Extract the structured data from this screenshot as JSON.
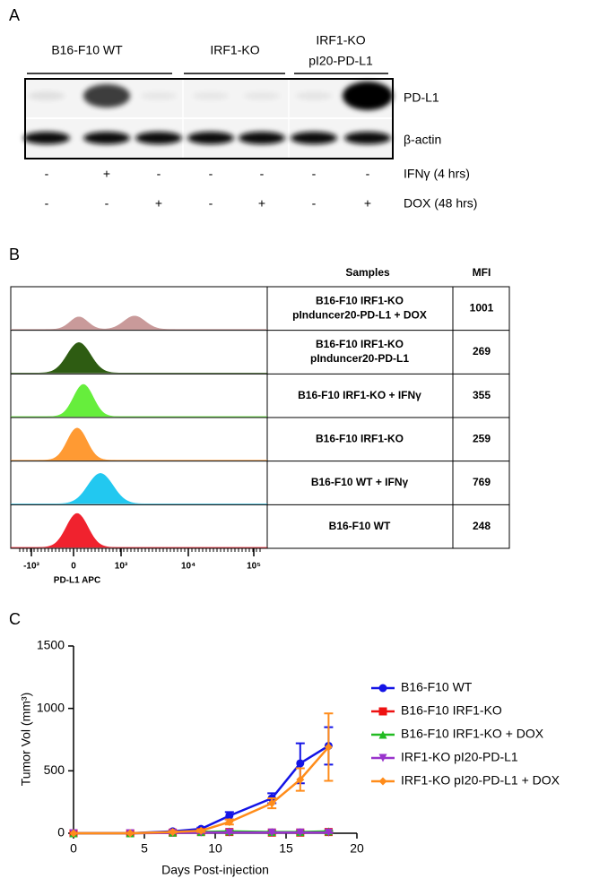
{
  "blot": {
    "panel_label": "A",
    "groups": [
      [
        "B16-F10 WT"
      ],
      [
        "IRF1-KO"
      ],
      [
        "IRF1-KO",
        "pI20-PD-L1"
      ]
    ],
    "bands": [
      "PD-L1",
      "β-actin"
    ],
    "treatments": [
      {
        "name": "IFNγ (4 hrs)",
        "signs": [
          "-",
          "+",
          "-",
          "-",
          "-",
          "-",
          "-"
        ]
      },
      {
        "name": "DOX (48 hrs)",
        "signs": [
          "-",
          "-",
          "+",
          "-",
          "+",
          "-",
          "+"
        ]
      }
    ]
  },
  "flow": {
    "panel_label": "B",
    "columns": [
      "Samples",
      "MFI"
    ],
    "rows": [
      {
        "sample": [
          "B16-F10 IRF1-KO",
          "pInduncer20-PD-L1 + DOX"
        ],
        "mfi": 1001,
        "color": "#c99a9a"
      },
      {
        "sample": [
          "B16-F10 IRF1-KO",
          "pInduncer20-PD-L1"
        ],
        "mfi": 269,
        "color": "#2e5c12"
      },
      {
        "sample": [
          "B16-F10 IRF1-KO + IFNγ"
        ],
        "mfi": 355,
        "color": "#66ee3c"
      },
      {
        "sample": [
          "B16-F10 IRF1-KO"
        ],
        "mfi": 259,
        "color": "#ff9a33"
      },
      {
        "sample": [
          "B16-F10 WT + IFNγ"
        ],
        "mfi": 769,
        "color": "#22c8f0"
      },
      {
        "sample": [
          "B16-F10 WT"
        ],
        "mfi": 248,
        "color": "#f0222e"
      }
    ],
    "axis_label": "PD-L1 APC",
    "ticks": [
      "-10³",
      "0",
      "10³",
      "10⁴",
      "10⁵"
    ]
  },
  "chart_data": {
    "type": "line",
    "panel_label": "C",
    "x_label": "Days Post-injection",
    "y_label": "Tumor Vol (mm³)",
    "x": [
      0,
      4,
      7,
      9,
      11,
      14,
      16,
      18
    ],
    "xlim": [
      0,
      20
    ],
    "xticks": [
      0,
      5,
      10,
      15,
      20
    ],
    "ylim": [
      0,
      1500
    ],
    "yticks": [
      0,
      500,
      1000,
      1500
    ],
    "series": [
      {
        "name": "B16-F10 WT",
        "color": "#1414e6",
        "marker": "circle",
        "values": [
          0,
          0,
          15,
          35,
          140,
          280,
          560,
          700
        ],
        "errors": [
          0,
          0,
          5,
          10,
          30,
          40,
          160,
          150
        ]
      },
      {
        "name": "B16-F10 IRF1-KO",
        "color": "#ee1111",
        "marker": "square",
        "values": [
          0,
          0,
          5,
          10,
          10,
          5,
          5,
          10
        ],
        "errors": [
          0,
          0,
          3,
          5,
          5,
          5,
          5,
          5
        ]
      },
      {
        "name": "B16-F10 IRF1-KO + DOX",
        "color": "#22bb22",
        "marker": "triangle",
        "values": [
          0,
          0,
          5,
          10,
          15,
          10,
          10,
          15
        ],
        "errors": [
          0,
          0,
          3,
          5,
          5,
          5,
          5,
          5
        ]
      },
      {
        "name": "IRF1-KO pI20-PD-L1",
        "color": "#9933cc",
        "marker": "triangle-down",
        "values": [
          0,
          0,
          3,
          5,
          5,
          5,
          5,
          5
        ],
        "errors": [
          0,
          0,
          2,
          3,
          3,
          3,
          3,
          3
        ]
      },
      {
        "name": "IRF1-KO pI20-PD-L1 + DOX",
        "color": "#ff8c1a",
        "marker": "diamond",
        "values": [
          0,
          0,
          10,
          20,
          90,
          240,
          430,
          690
        ],
        "errors": [
          0,
          0,
          5,
          10,
          20,
          40,
          90,
          270
        ]
      }
    ]
  }
}
